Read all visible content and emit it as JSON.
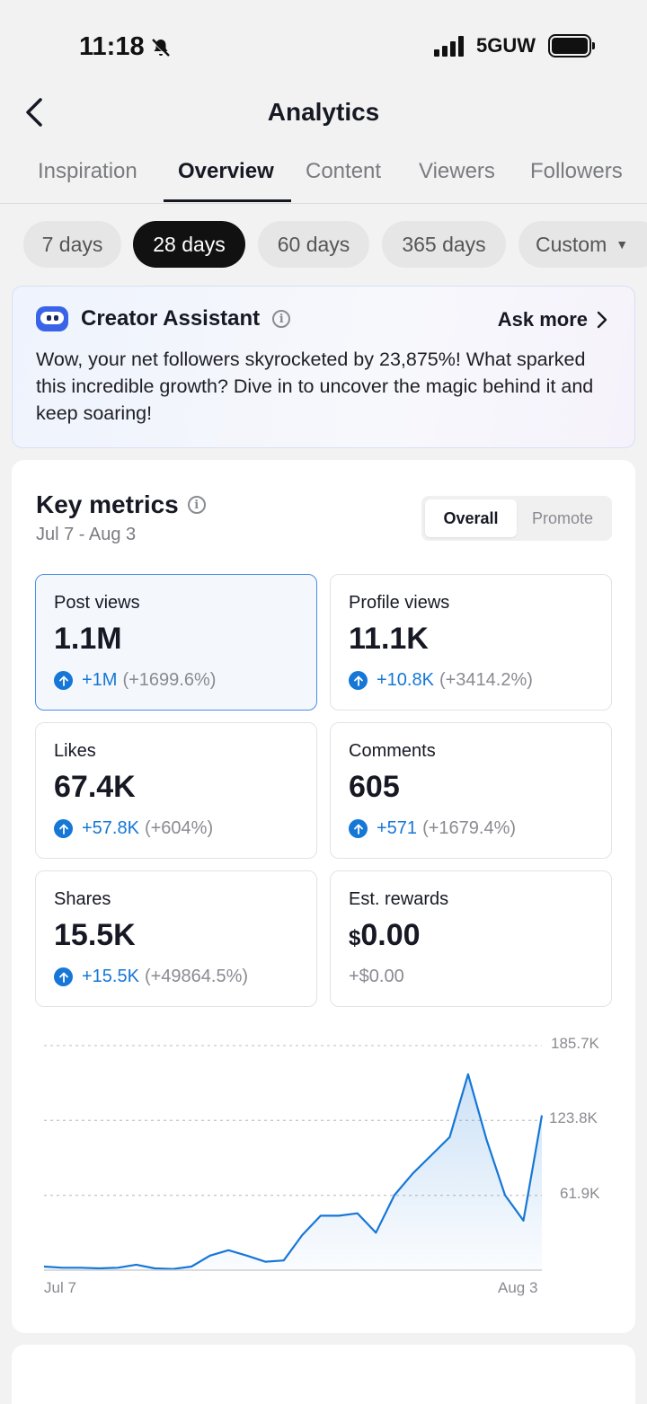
{
  "status_bar": {
    "time": "11:18",
    "network": "5GUW"
  },
  "header": {
    "title": "Analytics"
  },
  "tabs": [
    {
      "label": "Inspiration"
    },
    {
      "label": "Overview"
    },
    {
      "label": "Content"
    },
    {
      "label": "Viewers"
    },
    {
      "label": "Followers"
    }
  ],
  "active_tab": "Overview",
  "date_ranges": [
    {
      "label": "7 days"
    },
    {
      "label": "28 days"
    },
    {
      "label": "60 days"
    },
    {
      "label": "365 days"
    },
    {
      "label": "Custom"
    }
  ],
  "active_range": "28 days",
  "assistant": {
    "title": "Creator Assistant",
    "ask_more": "Ask more",
    "message": "Wow, your net followers skyrocketed by 23,875%! What sparked this incredible growth? Dive in to uncover the magic behind it and keep soaring!"
  },
  "key_metrics": {
    "title": "Key metrics",
    "range": "Jul 7 - Aug 3",
    "toggle": {
      "overall": "Overall",
      "promote": "Promote"
    },
    "items": [
      {
        "label": "Post views",
        "value": "1.1M",
        "change": "+1M",
        "pct": "(+1699.6%)"
      },
      {
        "label": "Profile views",
        "value": "11.1K",
        "change": "+10.8K",
        "pct": "(+3414.2%)"
      },
      {
        "label": "Likes",
        "value": "67.4K",
        "change": "+57.8K",
        "pct": "(+604%)"
      },
      {
        "label": "Comments",
        "value": "605",
        "change": "+571",
        "pct": "(+1679.4%)"
      },
      {
        "label": "Shares",
        "value": "15.5K",
        "change": "+15.5K",
        "pct": "(+49864.5%)"
      },
      {
        "label": "Est. rewards",
        "currency": "$",
        "value": "0.00",
        "change": "+$0.00"
      }
    ]
  },
  "chart_data": {
    "type": "area",
    "series": [
      {
        "values": [
          3000,
          2000,
          2000,
          1500,
          2000,
          4500,
          1500,
          1000,
          3000,
          12000,
          16500,
          12000,
          7000,
          8000,
          29000,
          45000,
          45000,
          47000,
          31000,
          62000,
          80000,
          95000,
          110000,
          162000,
          108000,
          62000,
          41000,
          128000
        ]
      }
    ],
    "x_tick_labels": [
      "Jul 7",
      "Aug 3"
    ],
    "y_tick_labels": [
      "185.7K",
      "123.8K",
      "61.9K"
    ],
    "ylim": [
      0,
      185700
    ],
    "grid": true,
    "color": "#1677d7"
  }
}
